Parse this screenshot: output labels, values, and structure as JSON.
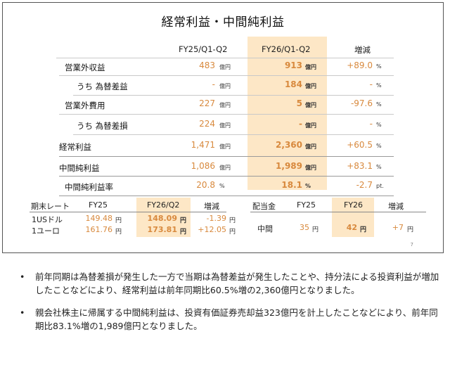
{
  "slide": {
    "title": "経常利益・中間純利益",
    "page_number": "7",
    "headers": {
      "prev": "FY25/Q1-Q2",
      "curr": "FY26/Q1-Q2",
      "change": "増減"
    },
    "rows": [
      {
        "label": "営業外収益",
        "prev": "483",
        "prev_unit": "億円",
        "curr": "913",
        "curr_unit": "億円",
        "change": "+89.0",
        "change_unit": "%"
      },
      {
        "label": "うち 為替差益",
        "prev": "-",
        "prev_unit": "億円",
        "curr": "184",
        "curr_unit": "億円",
        "change": "-",
        "change_unit": "%"
      },
      {
        "label": "営業外費用",
        "prev": "227",
        "prev_unit": "億円",
        "curr": "5",
        "curr_unit": "億円",
        "change": "-97.6",
        "change_unit": "%"
      },
      {
        "label": "うち 為替差損",
        "prev": "224",
        "prev_unit": "億円",
        "curr": "-",
        "curr_unit": "億円",
        "change": "-",
        "change_unit": "%"
      },
      {
        "label": "経常利益",
        "prev": "1,471",
        "prev_unit": "億円",
        "curr": "2,360",
        "curr_unit": "億円",
        "change": "+60.5",
        "change_unit": "%"
      },
      {
        "label": "中間純利益",
        "prev": "1,086",
        "prev_unit": "億円",
        "curr": "1,989",
        "curr_unit": "億円",
        "change": "+83.1",
        "change_unit": "%"
      },
      {
        "label": "中間純利益率",
        "prev": "20.8",
        "prev_unit": "%",
        "curr": "18.1",
        "curr_unit": "%",
        "change": "-2.7",
        "change_unit": "pt."
      }
    ],
    "rates": {
      "header": {
        "label": "期末レート",
        "prev": "FY25",
        "curr": "FY26/Q2",
        "change": "増減"
      },
      "rows": [
        {
          "label": "1USドル",
          "prev": "149.48",
          "curr": "148.09",
          "change": "-1.39",
          "unit": "円"
        },
        {
          "label": "1ユーロ",
          "prev": "161.76",
          "curr": "173.81",
          "change": "+12.05",
          "unit": "円"
        }
      ]
    },
    "dividend": {
      "header": {
        "label": "配当金",
        "prev": "FY25",
        "curr": "FY26",
        "change": "増減"
      },
      "row": {
        "label": "中間",
        "prev": "35",
        "curr": "42",
        "change": "+7",
        "unit": "円"
      }
    }
  },
  "bullets": [
    {
      "mark": "•",
      "text": "前年同期は為替差損が発生した一方で当期は為替差益が発生したことや、持分法による投資利益が増加したことなどにより、経常利益は前年同期比60.5%増の2,360億円となりました。"
    },
    {
      "mark": "•",
      "text": "親会社株主に帰属する中間純利益は、投資有価証券売却益323億円を計上したことなどにより、前年同期比83.1%増の1,989億円となりました。"
    }
  ]
}
